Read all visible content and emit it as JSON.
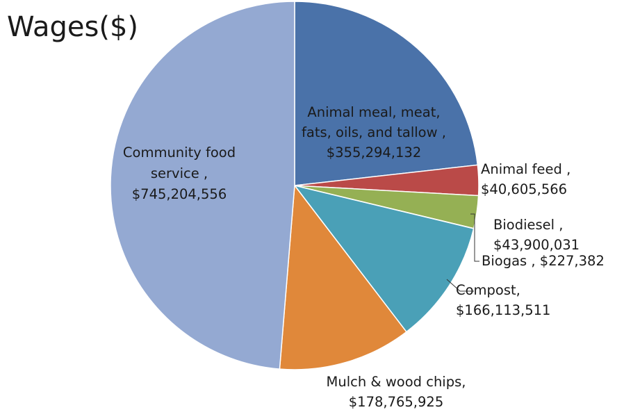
{
  "chart_data": {
    "type": "pie",
    "title": "Wages($)",
    "slices": [
      {
        "name": "Animal meal, meat, fats, oils, and tallow",
        "value": 355294132,
        "label_lines": [
          "Animal meal, meat,",
          "fats, oils, and tallow ,",
          "$355,294,132"
        ],
        "color": "#4a72a9"
      },
      {
        "name": "Animal feed",
        "value": 40605566,
        "label_lines": [
          "Animal feed ,",
          "$40,605,566"
        ],
        "color": "#ba4a48"
      },
      {
        "name": "Biodiesel",
        "value": 43900031,
        "label_lines": [
          "Biodiesel ,",
          "$43,900,031"
        ],
        "color": "#95b054"
      },
      {
        "name": "Biogas",
        "value": 227382,
        "label_lines": [
          "Biogas , $227,382"
        ],
        "color": "#7a5f9a"
      },
      {
        "name": "Compost",
        "value": 166113511,
        "label_lines": [
          "Compost,",
          "$166,113,511"
        ],
        "color": "#4aa0b7"
      },
      {
        "name": "Mulch & wood chips",
        "value": 178765925,
        "label_lines": [
          "Mulch & wood chips,",
          "$178,765,925"
        ],
        "color": "#e0883a"
      },
      {
        "name": "Community food service",
        "value": 745204556,
        "label_lines": [
          "Community food",
          "service ,",
          "$745,204,556"
        ],
        "color": "#94a9d2"
      }
    ],
    "start_angle": "12 o'clock",
    "direction": "clockwise",
    "legend": "none"
  }
}
